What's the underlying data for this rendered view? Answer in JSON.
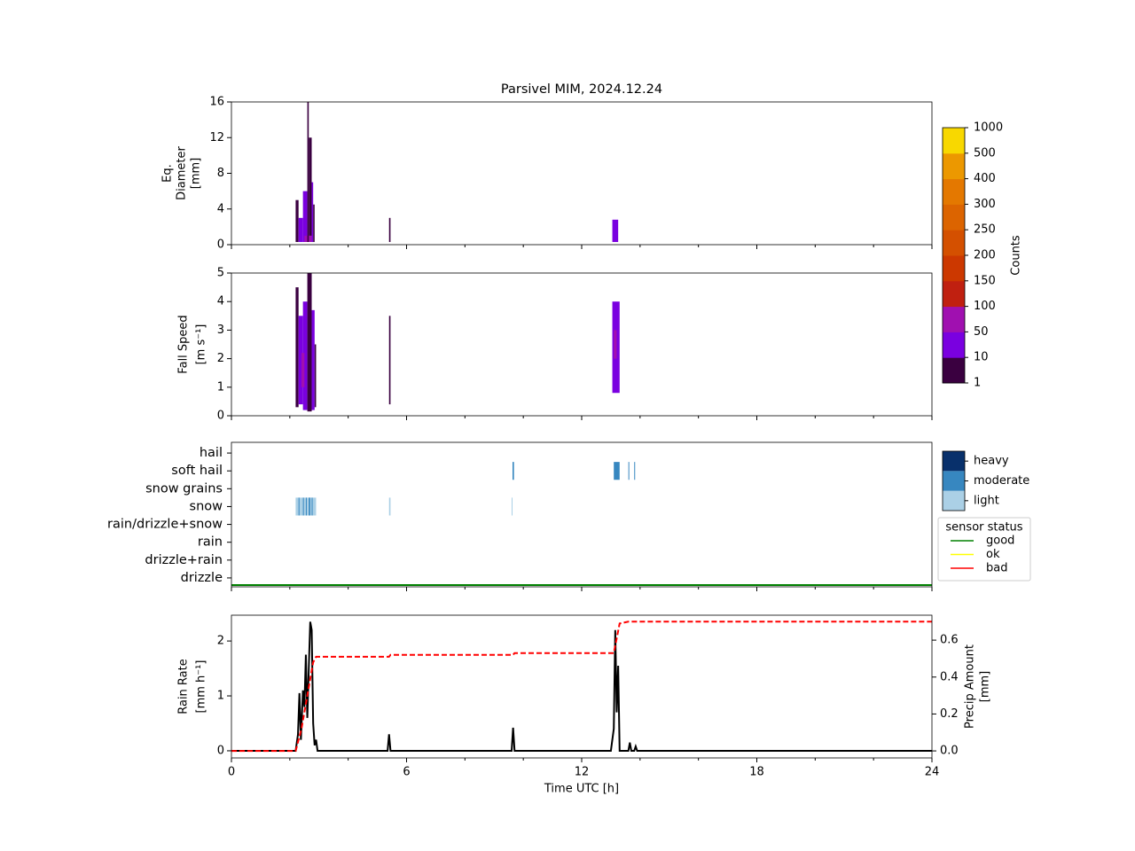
{
  "chart_data": [
    {
      "type": "heatmap",
      "title": "Parsivel MIM, 2024.12.24",
      "ylabel": [
        "Eq.",
        "Diameter",
        "[mm]"
      ],
      "xlim": [
        0,
        24
      ],
      "xticks": [
        0,
        6,
        12,
        18,
        24
      ],
      "xminorticks": [
        2,
        4,
        8,
        10,
        14,
        16,
        20,
        22
      ],
      "ylim": [
        0,
        16
      ],
      "yticks": [
        0,
        4,
        8,
        12,
        16
      ],
      "cells": [
        {
          "x": [
            2.2,
            2.3
          ],
          "y": [
            0.3,
            5
          ],
          "value": 8
        },
        {
          "x": [
            2.3,
            2.45
          ],
          "y": [
            0.3,
            3
          ],
          "value": 15
        },
        {
          "x": [
            2.45,
            2.6
          ],
          "y": [
            0.3,
            6
          ],
          "value": 15
        },
        {
          "x": [
            2.5,
            2.75
          ],
          "y": [
            0.3,
            1
          ],
          "value": 60
        },
        {
          "x": [
            2.6,
            2.65
          ],
          "y": [
            0.3,
            16
          ],
          "value": 1
        },
        {
          "x": [
            2.65,
            2.75
          ],
          "y": [
            1,
            12
          ],
          "value": 3
        },
        {
          "x": [
            2.75,
            2.8
          ],
          "y": [
            0.3,
            7
          ],
          "value": 15
        },
        {
          "x": [
            2.8,
            2.85
          ],
          "y": [
            0.3,
            4.5
          ],
          "value": 5
        },
        {
          "x": [
            5.4,
            5.45
          ],
          "y": [
            0.3,
            3
          ],
          "value": 8
        },
        {
          "x": [
            13.05,
            13.25
          ],
          "y": [
            0.3,
            2.8
          ],
          "value": 15
        }
      ],
      "colorbar": {
        "label": "Counts",
        "ticks": [
          1,
          10,
          50,
          100,
          150,
          200,
          250,
          300,
          400,
          500,
          1000
        ],
        "colors": [
          "#3a0040",
          "#7a00e0",
          "#a010b0",
          "#c02010",
          "#cc3800",
          "#d45000",
          "#dc6400",
          "#e47800",
          "#ec9800",
          "#f8d800"
        ]
      }
    },
    {
      "type": "heatmap",
      "ylabel": [
        "Fall Speed",
        "[m s⁻¹]"
      ],
      "xlim": [
        0,
        24
      ],
      "xticks": [
        0,
        6,
        12,
        18,
        24
      ],
      "xminorticks": [
        2,
        4,
        8,
        10,
        14,
        16,
        20,
        22
      ],
      "ylim": [
        0,
        5
      ],
      "yticks": [
        0,
        1,
        2,
        3,
        4,
        5
      ],
      "cells": [
        {
          "x": [
            2.2,
            2.3
          ],
          "y": [
            0.3,
            4.5
          ],
          "value": 5
        },
        {
          "x": [
            2.3,
            2.45
          ],
          "y": [
            0.4,
            3.5
          ],
          "value": 15
        },
        {
          "x": [
            2.45,
            2.6
          ],
          "y": [
            0.2,
            4
          ],
          "value": 20
        },
        {
          "x": [
            2.4,
            2.5
          ],
          "y": [
            1,
            2.2
          ],
          "value": 60
        },
        {
          "x": [
            2.6,
            2.75
          ],
          "y": [
            0.15,
            5
          ],
          "value": 8
        },
        {
          "x": [
            2.75,
            2.85
          ],
          "y": [
            0.2,
            3.7
          ],
          "value": 15
        },
        {
          "x": [
            2.85,
            2.9
          ],
          "y": [
            0.3,
            2.5
          ],
          "value": 3
        },
        {
          "x": [
            5.4,
            5.45
          ],
          "y": [
            0.4,
            3.5
          ],
          "value": 8
        },
        {
          "x": [
            13.05,
            13.3
          ],
          "y": [
            0.8,
            4
          ],
          "value": 15
        },
        {
          "x": [
            13.1,
            13.2
          ],
          "y": [
            2,
            3
          ],
          "value": 60
        }
      ]
    },
    {
      "type": "events",
      "categories": [
        "drizzle",
        "drizzle+rain",
        "rain",
        "rain/drizzle+snow",
        "snow",
        "snow grains",
        "soft hail",
        "hail"
      ],
      "xlim": [
        0,
        24
      ],
      "xticks": [
        0,
        6,
        12,
        18,
        24
      ],
      "xminorticks": [
        2,
        4,
        8,
        10,
        14,
        16,
        20,
        22
      ],
      "ylim": [
        -0.5,
        7.6
      ],
      "intensity": {
        "labels": [
          "light",
          "moderate",
          "heavy"
        ],
        "colors": [
          "#abd0e6",
          "#3787c0",
          "#08306b"
        ]
      },
      "events": [
        {
          "x": [
            2.2,
            2.9
          ],
          "category": "snow",
          "level": "light"
        },
        {
          "x": [
            2.3,
            2.33
          ],
          "category": "snow",
          "level": "moderate"
        },
        {
          "x": [
            2.45,
            2.48
          ],
          "category": "snow",
          "level": "moderate"
        },
        {
          "x": [
            2.55,
            2.58
          ],
          "category": "snow",
          "level": "moderate"
        },
        {
          "x": [
            2.65,
            2.7
          ],
          "category": "snow",
          "level": "moderate"
        },
        {
          "x": [
            2.75,
            2.78
          ],
          "category": "snow",
          "level": "moderate"
        },
        {
          "x": [
            5.4,
            5.45
          ],
          "category": "snow",
          "level": "light"
        },
        {
          "x": [
            9.6,
            9.63
          ],
          "category": "snow",
          "level": "light"
        },
        {
          "x": [
            9.63,
            9.68
          ],
          "category": "soft hail",
          "level": "moderate"
        },
        {
          "x": [
            13.1,
            13.3
          ],
          "category": "soft hail",
          "level": "moderate"
        },
        {
          "x": [
            13.6,
            13.63
          ],
          "category": "soft hail",
          "level": "moderate"
        },
        {
          "x": [
            13.8,
            13.83
          ],
          "category": "soft hail",
          "level": "moderate"
        }
      ],
      "status_legend": {
        "title": "sensor status",
        "labels": [
          "good",
          "ok",
          "bad"
        ],
        "colors": [
          "green",
          "yellow",
          "red"
        ]
      },
      "status": [
        {
          "x": [
            0,
            24
          ],
          "state": "good"
        }
      ]
    },
    {
      "type": "line",
      "xlabel": "Time UTC [h]",
      "ylabel": [
        "Rain Rate",
        "[mm h⁻¹]"
      ],
      "y2label": [
        "Precip Amount",
        "[mm]"
      ],
      "xlim": [
        0,
        24
      ],
      "xticks": [
        0,
        6,
        12,
        18,
        24
      ],
      "xminorticks": [
        2,
        4,
        8,
        10,
        14,
        16,
        20,
        22
      ],
      "ylim": [
        -0.13,
        2.47
      ],
      "yticks": [
        0,
        1,
        2
      ],
      "y2lim": [
        -0.038,
        0.735
      ],
      "y2ticks": [
        0.0,
        0.2,
        0.4,
        0.6
      ],
      "series": [
        {
          "name": "Rain Rate",
          "color": "#000000",
          "dash": "none",
          "x": [
            0,
            2.2,
            2.28,
            2.33,
            2.38,
            2.45,
            2.5,
            2.55,
            2.6,
            2.65,
            2.7,
            2.75,
            2.8,
            2.85,
            2.9,
            2.95,
            5.35,
            5.4,
            5.45,
            9.6,
            9.65,
            9.7,
            13.0,
            13.1,
            13.15,
            13.2,
            13.25,
            13.3,
            13.6,
            13.65,
            13.7,
            13.8,
            13.85,
            13.9,
            24
          ],
          "values": [
            0,
            0,
            0.3,
            1.05,
            0.2,
            1.1,
            0.8,
            1.75,
            0.6,
            1.5,
            2.35,
            2.2,
            0.5,
            0.1,
            0.2,
            0,
            0,
            0.3,
            0,
            0,
            0.42,
            0,
            0,
            0.4,
            2.2,
            0.7,
            1.55,
            0,
            0,
            0.15,
            0,
            0,
            0.08,
            0,
            0
          ]
        },
        {
          "name": "Precip Amount",
          "color": "#ff0000",
          "dash": "6,3",
          "axis": "y2",
          "x": [
            0,
            2.2,
            2.4,
            2.6,
            2.8,
            2.9,
            5.4,
            5.45,
            9.65,
            9.7,
            13.1,
            13.3,
            13.6,
            24
          ],
          "values": [
            0,
            0,
            0.12,
            0.3,
            0.48,
            0.51,
            0.51,
            0.52,
            0.52,
            0.53,
            0.53,
            0.69,
            0.7,
            0.7
          ]
        }
      ]
    }
  ]
}
